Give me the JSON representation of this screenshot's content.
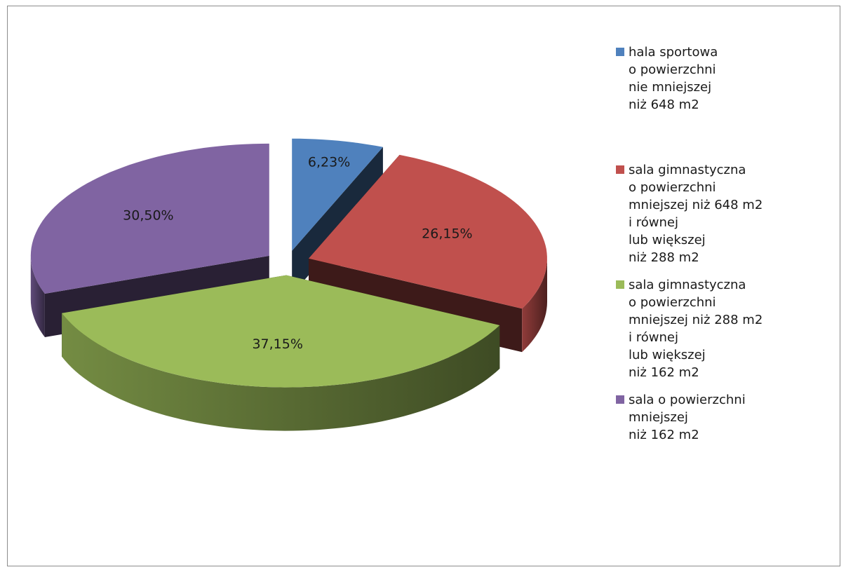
{
  "chart_data": {
    "type": "pie",
    "categories": [
      "hala sportowa\no powierzchni\nnie mniejszej\nniż 648 m2",
      "sala gimnastyczna\no powierzchni\nmniejszej niż 648 m2\ni równej\nlub większej\nniż 288 m2",
      "sala gimnastyczna\no powierzchni\nmniejszej niż 288 m2\ni równej\nlub większej\nniż 162 m2",
      "sala o powierzchni\nmniejszej\nniż 162 m2"
    ],
    "values": [
      6.23,
      26.15,
      37.15,
      30.5
    ],
    "value_labels": [
      "6,23%",
      "26,15%",
      "37,15%",
      "30,50%"
    ],
    "colors": [
      "#4f81bd",
      "#c0504d",
      "#9bbb59",
      "#8064a2"
    ],
    "legend": "right"
  }
}
